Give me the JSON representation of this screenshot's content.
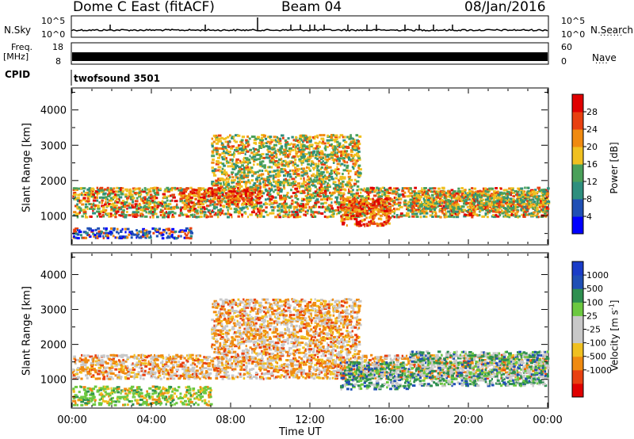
{
  "header": {
    "station": "Dome C East (fitACF)",
    "beam": "Beam 04",
    "date": "08/Jan/2016"
  },
  "top_panels": {
    "nsky_label": "N.Sky",
    "nsearch_label": "N.Search",
    "nsky_ticks": [
      "10^5",
      "10^0"
    ],
    "nsearch_ticks": [
      "10^5",
      "10^0"
    ],
    "freq_label_1": "Freq.",
    "freq_label_2": "[MHz]",
    "freq_ticks": [
      "18",
      "8"
    ],
    "nave_label": "Nave",
    "nave_ticks": [
      "60",
      "0"
    ],
    "cpid_label": "CPID",
    "cpid_value": "twofsound 3501"
  },
  "colors": {
    "power_scale": [
      "#0000ff",
      "#1f4fb5",
      "#2e8f7e",
      "#4aa05a",
      "#f0c020",
      "#f08a10",
      "#e84010",
      "#e00000"
    ],
    "velocity_scale": [
      "#e00000",
      "#e84010",
      "#f08a10",
      "#f0c020",
      "#c8c8c8",
      "#c8c8c8",
      "#6cc840",
      "#2e8f50",
      "#1f4fb5",
      "#1a3cc8"
    ]
  },
  "chart_data": [
    {
      "type": "heatmap",
      "panel": "power",
      "ylabel": "Slant Range [km]",
      "yticks": [
        1000,
        2000,
        3000,
        4000
      ],
      "ylim": [
        200,
        4600
      ],
      "colorbar_label": "Power [dB]",
      "colorbar_ticks": [
        "4",
        "8",
        "12",
        "16",
        "20",
        "24",
        "28"
      ],
      "colorbar_range": [
        0,
        32
      ],
      "scatter_bands": [
        {
          "t0": 0.0,
          "t1": 6.0,
          "r0": 350,
          "r1": 650,
          "level": "mixed_low"
        },
        {
          "t0": 0.0,
          "t1": 24.0,
          "r0": 950,
          "r1": 1800,
          "level": "mixed"
        },
        {
          "t0": 5.5,
          "t1": 9.5,
          "r0": 1300,
          "r1": 1800,
          "level": "high"
        },
        {
          "t0": 7.0,
          "t1": 14.5,
          "r0": 1800,
          "r1": 3300,
          "level": "mid"
        },
        {
          "t0": 13.5,
          "t1": 16.0,
          "r0": 700,
          "r1": 1500,
          "level": "high"
        },
        {
          "t0": 17.0,
          "t1": 24.0,
          "r0": 1100,
          "r1": 1700,
          "level": "mid"
        }
      ]
    },
    {
      "type": "heatmap",
      "panel": "velocity",
      "ylabel": "Slant Range [km]",
      "yticks": [
        1000,
        2000,
        3000,
        4000
      ],
      "ylim": [
        200,
        4600
      ],
      "xlabel": "Time UT",
      "xticks": [
        "00:00",
        "04:00",
        "08:00",
        "12:00",
        "16:00",
        "20:00",
        "00:00"
      ],
      "xlim_hours": [
        0,
        24
      ],
      "colorbar_label": "Velocity [m s^-1]",
      "colorbar_ticks": [
        "1000",
        "500",
        "100",
        "25",
        "-25",
        "-100",
        "-500",
        "-1000"
      ],
      "scatter_bands": [
        {
          "t0": 0.0,
          "t1": 7.0,
          "r0": 250,
          "r1": 800,
          "level": "green_orange"
        },
        {
          "t0": 0.0,
          "t1": 24.0,
          "r0": 1000,
          "r1": 1700,
          "level": "grey_orange"
        },
        {
          "t0": 7.0,
          "t1": 14.5,
          "r0": 1700,
          "r1": 3300,
          "level": "grey_orange"
        },
        {
          "t0": 13.5,
          "t1": 17.0,
          "r0": 700,
          "r1": 1500,
          "level": "green"
        },
        {
          "t0": 17.0,
          "t1": 24.0,
          "r0": 800,
          "r1": 1800,
          "level": "green_grey"
        }
      ]
    }
  ]
}
